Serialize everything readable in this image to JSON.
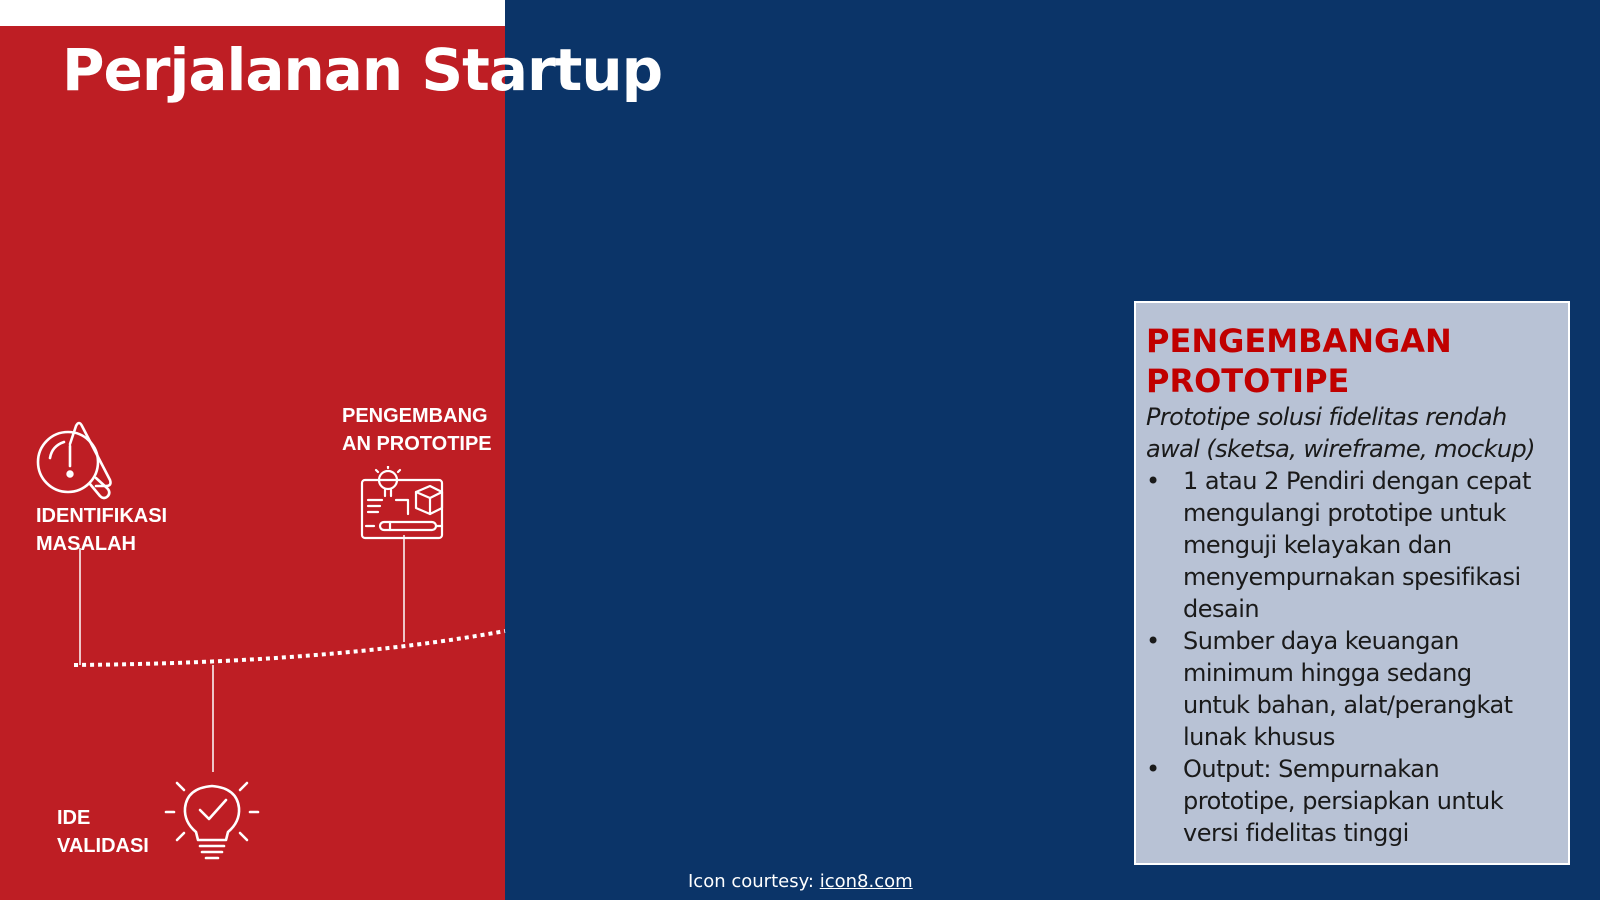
{
  "slide": {
    "title": "Perjalanan Startup",
    "colors": {
      "red_panel": "#be1e24",
      "blue_panel": "#0b3468",
      "info_box": "#b8c2d5",
      "info_title": "#c00000"
    }
  },
  "stages": [
    {
      "label": "IDENTIFIKASI MASALAH",
      "icon": "warning-magnifier-icon"
    },
    {
      "label": "IDE VALIDASI",
      "icon": "lightbulb-check-icon"
    },
    {
      "label": "PENGEMBANGAN PROTOTIPE",
      "icon": "prototype-blueprint-icon"
    }
  ],
  "stage_labels": {
    "identifikasi": [
      "IDENTIFIKASI",
      "MASALAH"
    ],
    "ide": [
      "IDE",
      "VALIDASI"
    ],
    "pengembangan": [
      "PENGEMBANG",
      "AN PROTOTIPE"
    ]
  },
  "info_box": {
    "title_lines": [
      "PENGEMBANGAN",
      "PROTOTIPE"
    ],
    "subtitle_lines": [
      "Prototipe solusi fidelitas rendah",
      "awal (sketsa, wireframe, mockup)"
    ],
    "bullet_symbol": "•",
    "bullets": [
      [
        "1 atau 2 Pendiri dengan cepat",
        "mengulangi prototipe untuk",
        "menguji kelayakan dan",
        "menyempurnakan spesifikasi",
        "desain"
      ],
      [
        "Sumber daya keuangan",
        "minimum hingga sedang",
        "untuk bahan, alat/perangkat",
        "lunak khusus"
      ],
      [
        "Output: Sempurnakan",
        "prototipe, persiapkan untuk",
        "versi fidelitas tinggi"
      ]
    ]
  },
  "credit": {
    "prefix": "Icon courtesy: ",
    "link_text": "icon8.com"
  }
}
